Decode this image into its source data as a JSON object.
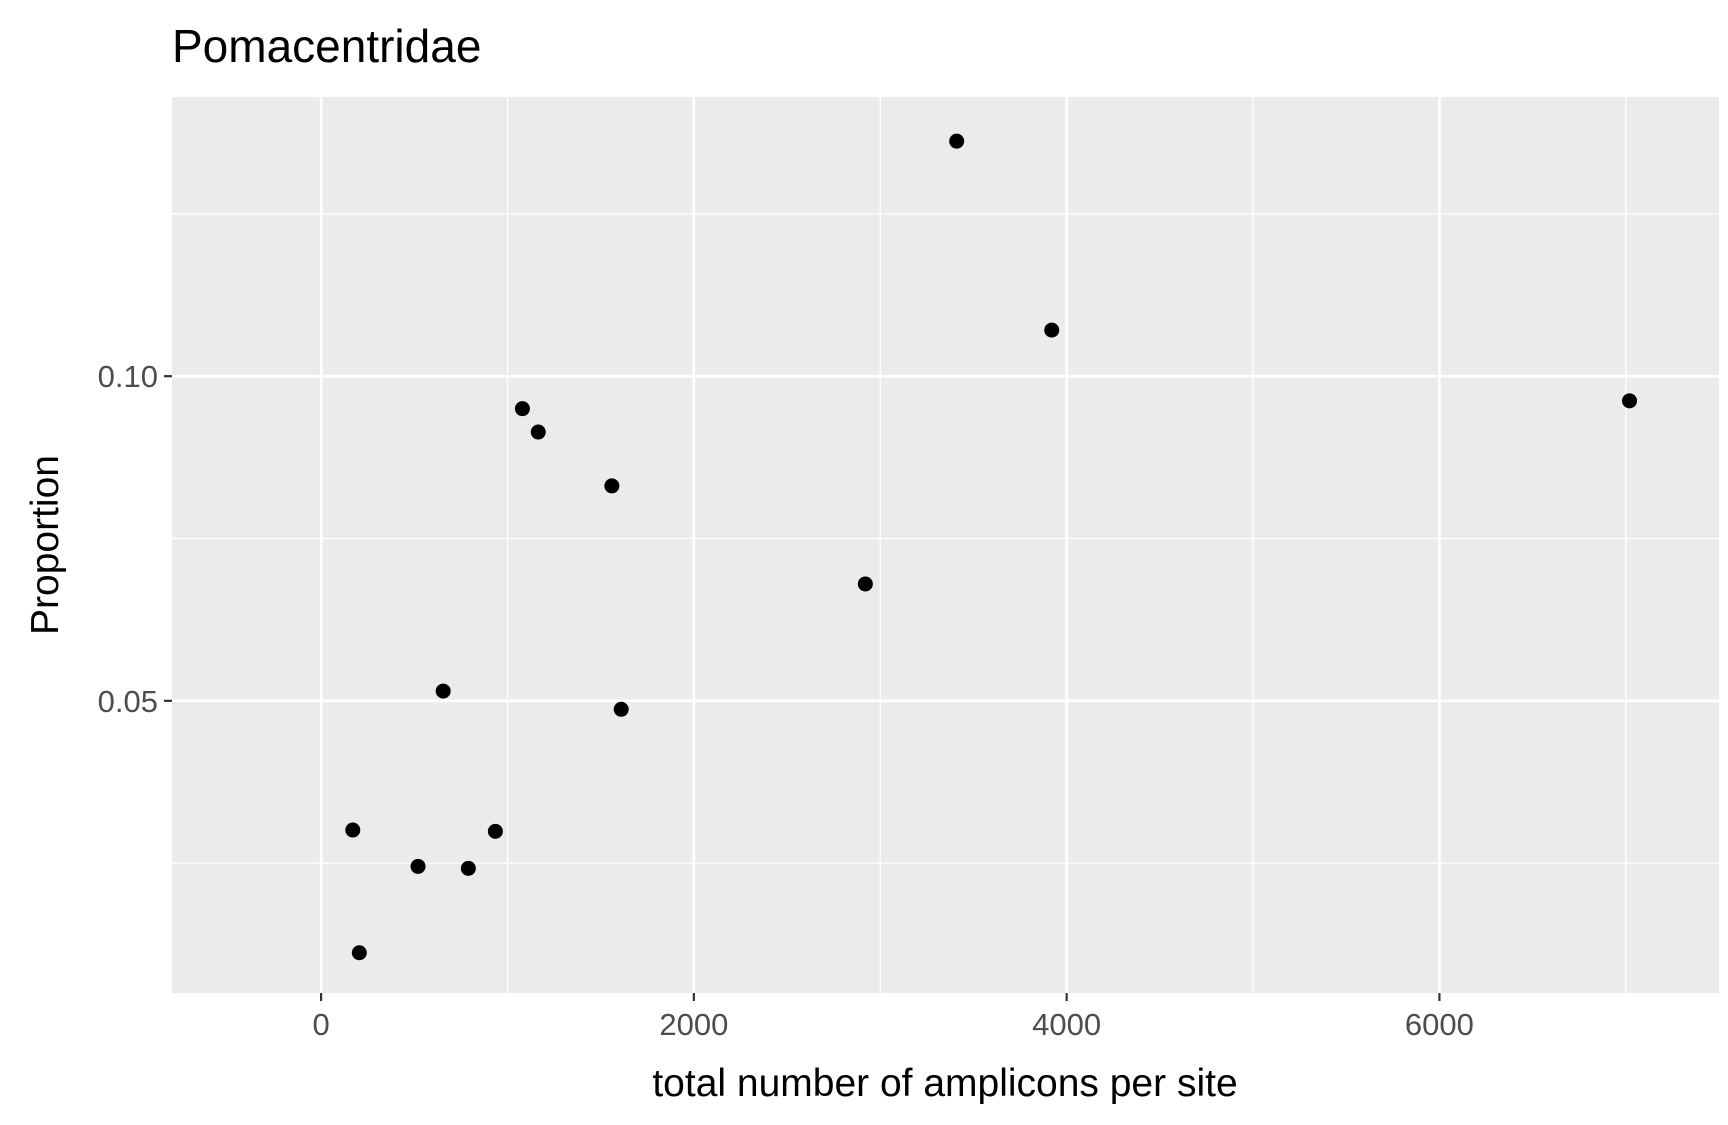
{
  "chart_data": {
    "type": "scatter",
    "title": "Pomacentridae",
    "xlabel": "total number of amplicons per site",
    "ylabel": "Proportion",
    "xlim": [
      -800,
      7500
    ],
    "ylim": [
      0.005,
      0.143
    ],
    "x_major_ticks": [
      0,
      2000,
      4000,
      6000
    ],
    "x_tick_labels": [
      "0",
      "2000",
      "4000",
      "6000"
    ],
    "x_minor_ticks": [
      1000,
      3000,
      5000,
      7000
    ],
    "y_major_ticks": [
      0.05,
      0.1
    ],
    "y_tick_labels": [
      "0.05",
      "0.10"
    ],
    "y_minor_ticks": [
      0.025,
      0.075,
      0.125
    ],
    "grid": true,
    "legend": "none",
    "colors": {
      "panel": "#ebebeb",
      "grid": "#ffffff",
      "point": "#000000",
      "tick": "#333333"
    },
    "points": [
      {
        "x": 170,
        "y": 0.0301
      },
      {
        "x": 205,
        "y": 0.0112
      },
      {
        "x": 520,
        "y": 0.0245
      },
      {
        "x": 655,
        "y": 0.0515
      },
      {
        "x": 790,
        "y": 0.0242
      },
      {
        "x": 935,
        "y": 0.0299
      },
      {
        "x": 1080,
        "y": 0.095
      },
      {
        "x": 1165,
        "y": 0.0914
      },
      {
        "x": 1560,
        "y": 0.0831
      },
      {
        "x": 1610,
        "y": 0.0487
      },
      {
        "x": 2920,
        "y": 0.068
      },
      {
        "x": 3410,
        "y": 0.1362
      },
      {
        "x": 3920,
        "y": 0.1071
      },
      {
        "x": 7020,
        "y": 0.0962
      }
    ]
  }
}
